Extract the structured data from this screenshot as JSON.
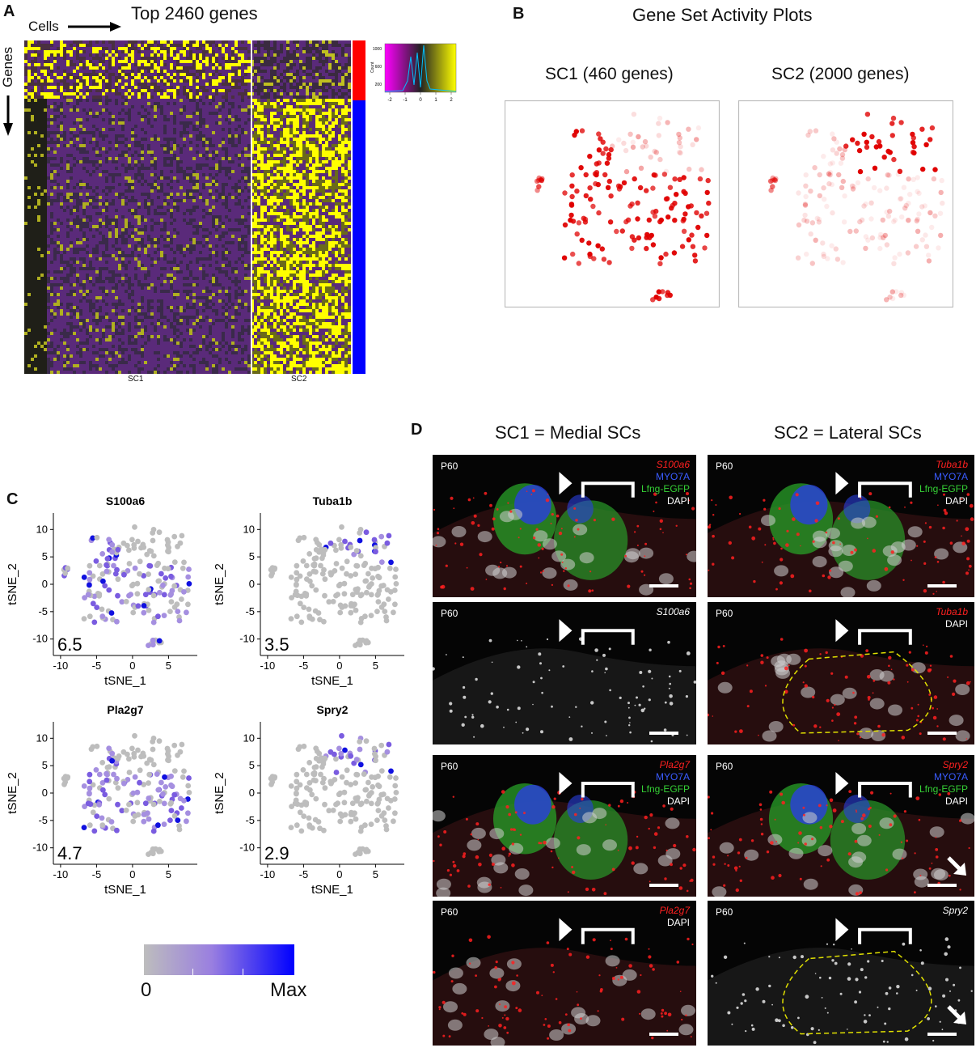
{
  "panelA": {
    "letter": "A",
    "title": "Top 2460 genes",
    "cells_label": "Cells",
    "genes_label": "Genes",
    "col_labels": [
      "SC1",
      "SC2"
    ],
    "histogram_ticks": [
      "-2",
      "-1",
      "0",
      "1",
      "2"
    ],
    "histogram_yticks": [
      "1000",
      "600",
      "200"
    ],
    "histogram_ylabel": "Count",
    "row_group_colors": [
      "#ff0000",
      "#0000ff"
    ],
    "heatmap_colors": {
      "low": "#5a2a7a",
      "mid": "#2a2a1e",
      "high": "#ffff00"
    }
  },
  "panelB": {
    "letter": "B",
    "title": "Gene Set Activity Plots",
    "plots": [
      {
        "title": "SC1 (460 genes)"
      },
      {
        "title": "SC2 (2000 genes)"
      }
    ]
  },
  "panelC": {
    "letter": "C",
    "xlabel": "tSNE_1",
    "ylabel": "tSNE_2",
    "xticks": [
      "-10",
      "-5",
      "0",
      "5"
    ],
    "yticks": [
      "10",
      "5",
      "0",
      "-5",
      "-10"
    ],
    "plots": [
      {
        "gene": "S100a6",
        "max": "6.5"
      },
      {
        "gene": "Tuba1b",
        "max": "3.5"
      },
      {
        "gene": "Pla2g7",
        "max": "4.7"
      },
      {
        "gene": "Spry2",
        "max": "2.9"
      }
    ],
    "colorbar": {
      "min_label": "0",
      "max_label": "Max",
      "low": "#bdbdbd",
      "high": "#0000ff"
    }
  },
  "panelD": {
    "letter": "D",
    "col_titles": [
      "SC1 = Medial SCs",
      "SC2 = Lateral SCs"
    ],
    "images": [
      {
        "stage": "P60",
        "labels": [
          {
            "t": "S100a6",
            "c": "red"
          },
          {
            "t": "MYO7A",
            "c": "blue"
          },
          {
            "t": "Lfng-EGFP",
            "c": "green"
          },
          {
            "t": "DAPI",
            "c": "white"
          }
        ]
      },
      {
        "stage": "P60",
        "labels": [
          {
            "t": "Tuba1b",
            "c": "red"
          },
          {
            "t": "MYO7A",
            "c": "blue"
          },
          {
            "t": "Lfng-EGFP",
            "c": "green"
          },
          {
            "t": "DAPI",
            "c": "white"
          }
        ]
      },
      {
        "stage": "P60",
        "labels": [
          {
            "t": "S100a6",
            "c": "grayital"
          }
        ]
      },
      {
        "stage": "P60",
        "labels": [
          {
            "t": "Tuba1b",
            "c": "red"
          },
          {
            "t": "DAPI",
            "c": "white"
          }
        ]
      },
      {
        "stage": "P60",
        "labels": [
          {
            "t": "Pla2g7",
            "c": "red"
          },
          {
            "t": "MYO7A",
            "c": "blue"
          },
          {
            "t": "Lfng-EGFP",
            "c": "green"
          },
          {
            "t": "DAPI",
            "c": "white"
          }
        ]
      },
      {
        "stage": "P60",
        "labels": [
          {
            "t": "Spry2",
            "c": "red"
          },
          {
            "t": "MYO7A",
            "c": "blue"
          },
          {
            "t": "Lfng-EGFP",
            "c": "green"
          },
          {
            "t": "DAPI",
            "c": "white"
          }
        ]
      },
      {
        "stage": "P60",
        "labels": [
          {
            "t": "Pla2g7",
            "c": "red"
          },
          {
            "t": "DAPI",
            "c": "white"
          }
        ]
      },
      {
        "stage": "P60",
        "labels": [
          {
            "t": "Spry2",
            "c": "grayital"
          }
        ]
      }
    ]
  }
}
